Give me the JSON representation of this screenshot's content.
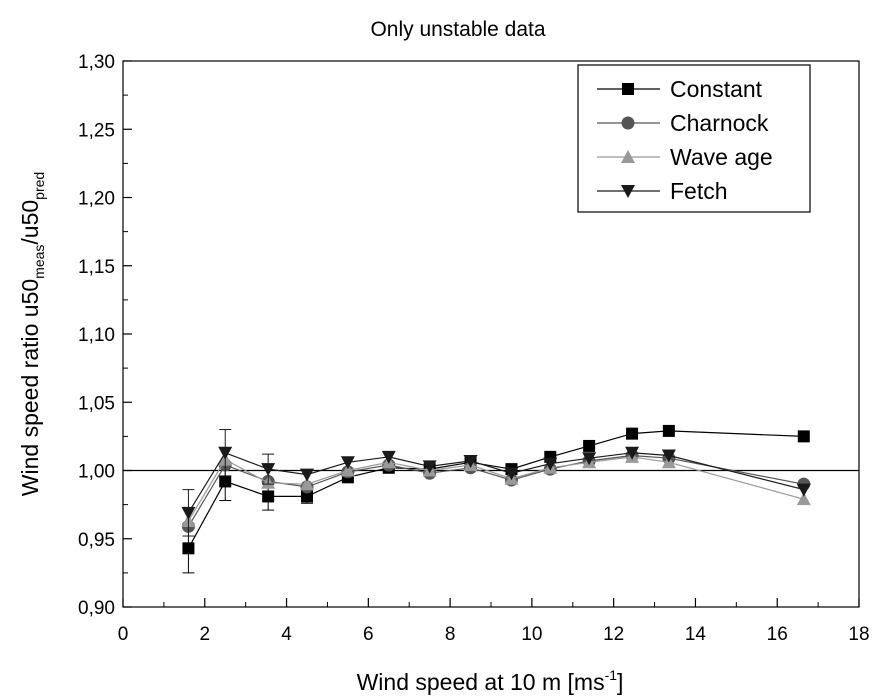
{
  "chart_data": {
    "type": "line",
    "title": "Only unstable data",
    "xlabel_main": "Wind speed at 10 m [ms",
    "xlabel_sup": "-1",
    "xlabel_end": "]",
    "ylabel_main": "Wind speed ratio u50",
    "ylabel_sub1": "meas",
    "ylabel_mid": "/u50",
    "ylabel_sub2": "pred",
    "xlim": [
      0,
      18
    ],
    "ylim": [
      0.9,
      1.3
    ],
    "xticks": [
      0,
      2,
      4,
      6,
      8,
      10,
      12,
      14,
      16,
      18
    ],
    "xtick_labels": [
      "0",
      "2",
      "4",
      "6",
      "8",
      "10",
      "12",
      "14",
      "16",
      "18"
    ],
    "yticks": [
      0.9,
      0.95,
      1.0,
      1.05,
      1.1,
      1.15,
      1.2,
      1.25,
      1.3
    ],
    "ytick_labels": [
      "0,90",
      "0,95",
      "1,00",
      "1,05",
      "1,10",
      "1,15",
      "1,20",
      "1,25",
      "1,30"
    ],
    "reference_line": 1.0,
    "legend_position": "top-right",
    "x": [
      1.6,
      2.5,
      3.55,
      4.5,
      5.5,
      6.5,
      7.5,
      8.5,
      9.5,
      10.45,
      11.4,
      12.45,
      13.35,
      16.65
    ],
    "series": [
      {
        "name": "Constant",
        "marker": "square",
        "color": "#000000",
        "values": [
          0.943,
          0.992,
          0.981,
          0.981,
          0.995,
          1.002,
          1.001,
          1.006,
          1.001,
          1.01,
          1.018,
          1.027,
          1.029,
          1.025
        ],
        "errors": [
          0.018,
          0.014,
          0.01,
          0.005,
          0,
          0,
          0,
          0,
          0,
          0,
          0,
          0,
          0,
          0
        ]
      },
      {
        "name": "Charnock",
        "marker": "circle",
        "color": "#555555",
        "values": [
          0.959,
          1.004,
          0.992,
          0.988,
          0.999,
          1.004,
          0.998,
          1.002,
          0.993,
          1.001,
          1.007,
          1.011,
          1.009,
          0.99
        ],
        "errors": [
          0,
          0,
          0,
          0,
          0,
          0,
          0,
          0,
          0,
          0,
          0,
          0,
          0,
          0
        ]
      },
      {
        "name": "Wave age",
        "marker": "triangle-up",
        "color": "#999999",
        "values": [
          0.963,
          1.008,
          0.991,
          0.99,
          1.0,
          1.006,
          1.0,
          1.004,
          0.994,
          1.002,
          1.006,
          1.01,
          1.006,
          0.979
        ],
        "errors": [
          0,
          0,
          0,
          0,
          0,
          0,
          0,
          0,
          0,
          0,
          0,
          0,
          0,
          0
        ]
      },
      {
        "name": "Fetch",
        "marker": "triangle-down",
        "color": "#1a1a1a",
        "values": [
          0.969,
          1.013,
          1.001,
          0.997,
          1.006,
          1.01,
          1.003,
          1.007,
          0.998,
          1.005,
          1.009,
          1.013,
          1.011,
          0.986
        ],
        "errors": [
          0.017,
          0.017,
          0.011,
          0,
          0,
          0,
          0,
          0,
          0,
          0,
          0,
          0,
          0,
          0
        ]
      }
    ]
  }
}
